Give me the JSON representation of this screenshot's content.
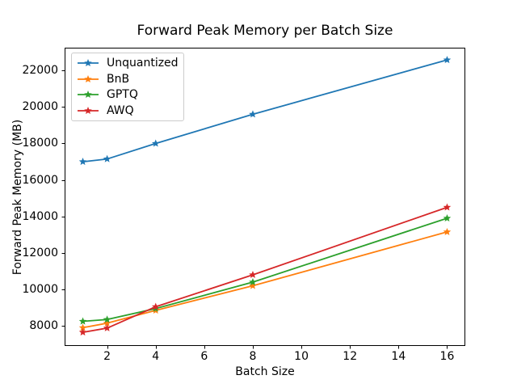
{
  "chart_data": {
    "type": "line",
    "title": "Forward Peak Memory per Batch Size",
    "xlabel": "Batch Size",
    "ylabel": "Forward Peak Memory (MB)",
    "x": [
      1,
      2,
      4,
      8,
      16
    ],
    "series": [
      {
        "name": "Unquantized",
        "color": "#1f77b4",
        "values": [
          17000,
          17150,
          18000,
          19600,
          22580
        ]
      },
      {
        "name": "BnB",
        "color": "#ff7f0e",
        "values": [
          7900,
          8150,
          8850,
          10200,
          13150
        ]
      },
      {
        "name": "GPTQ",
        "color": "#2ca02c",
        "values": [
          8250,
          8350,
          8950,
          10400,
          13900
        ]
      },
      {
        "name": "AWQ",
        "color": "#d62728",
        "values": [
          7650,
          7880,
          9050,
          10800,
          14500
        ]
      }
    ],
    "xlim": [
      0.25,
      16.75
    ],
    "ylim": [
      6900,
      23250
    ],
    "xticks": [
      2,
      4,
      6,
      8,
      10,
      12,
      14,
      16
    ],
    "yticks": [
      8000,
      10000,
      12000,
      14000,
      16000,
      18000,
      20000,
      22000
    ],
    "grid": false,
    "marker": "star",
    "legend_position": "upper left",
    "spine_color": "#000000",
    "legend_border_color": "#cccccc"
  }
}
